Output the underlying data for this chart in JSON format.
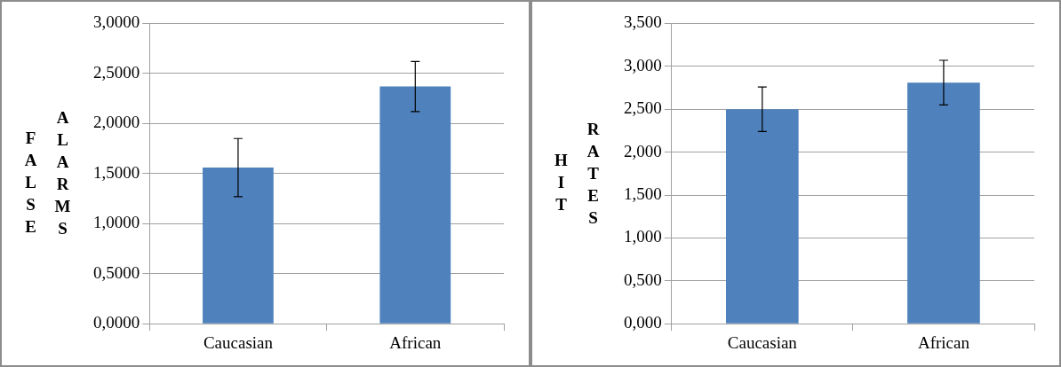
{
  "chart_data": [
    {
      "type": "bar",
      "ylabel": "FALSE ALARMS",
      "categories": [
        "Caucasian",
        "African"
      ],
      "values": [
        1.56,
        2.37
      ],
      "errors": [
        0.29,
        0.25
      ],
      "color": "#4f81bd",
      "ylim": [
        0,
        3
      ],
      "yticks": [
        {
          "value": 0,
          "label": "0,0000"
        },
        {
          "value": 0.5,
          "label": "0,5000"
        },
        {
          "value": 1,
          "label": "1,0000"
        },
        {
          "value": 1.5,
          "label": "1,5000"
        },
        {
          "value": 2,
          "label": "2,0000"
        },
        {
          "value": 2.5,
          "label": "2,5000"
        },
        {
          "value": 3,
          "label": "3,0000"
        }
      ],
      "grid": "y",
      "legend": false
    },
    {
      "type": "bar",
      "ylabel": "HIT RATES",
      "categories": [
        "Caucasian",
        "African"
      ],
      "values": [
        2.5,
        2.81
      ],
      "errors": [
        0.26,
        0.26
      ],
      "color": "#4f81bd",
      "ylim": [
        0,
        3.5
      ],
      "yticks": [
        {
          "value": 0,
          "label": "0,000"
        },
        {
          "value": 0.5,
          "label": "0,500"
        },
        {
          "value": 1,
          "label": "1,000"
        },
        {
          "value": 1.5,
          "label": "1,500"
        },
        {
          "value": 2,
          "label": "2,000"
        },
        {
          "value": 2.5,
          "label": "2,500"
        },
        {
          "value": 3,
          "label": "3,000"
        },
        {
          "value": 3.5,
          "label": "3,500"
        }
      ],
      "grid": "y",
      "legend": false
    }
  ]
}
